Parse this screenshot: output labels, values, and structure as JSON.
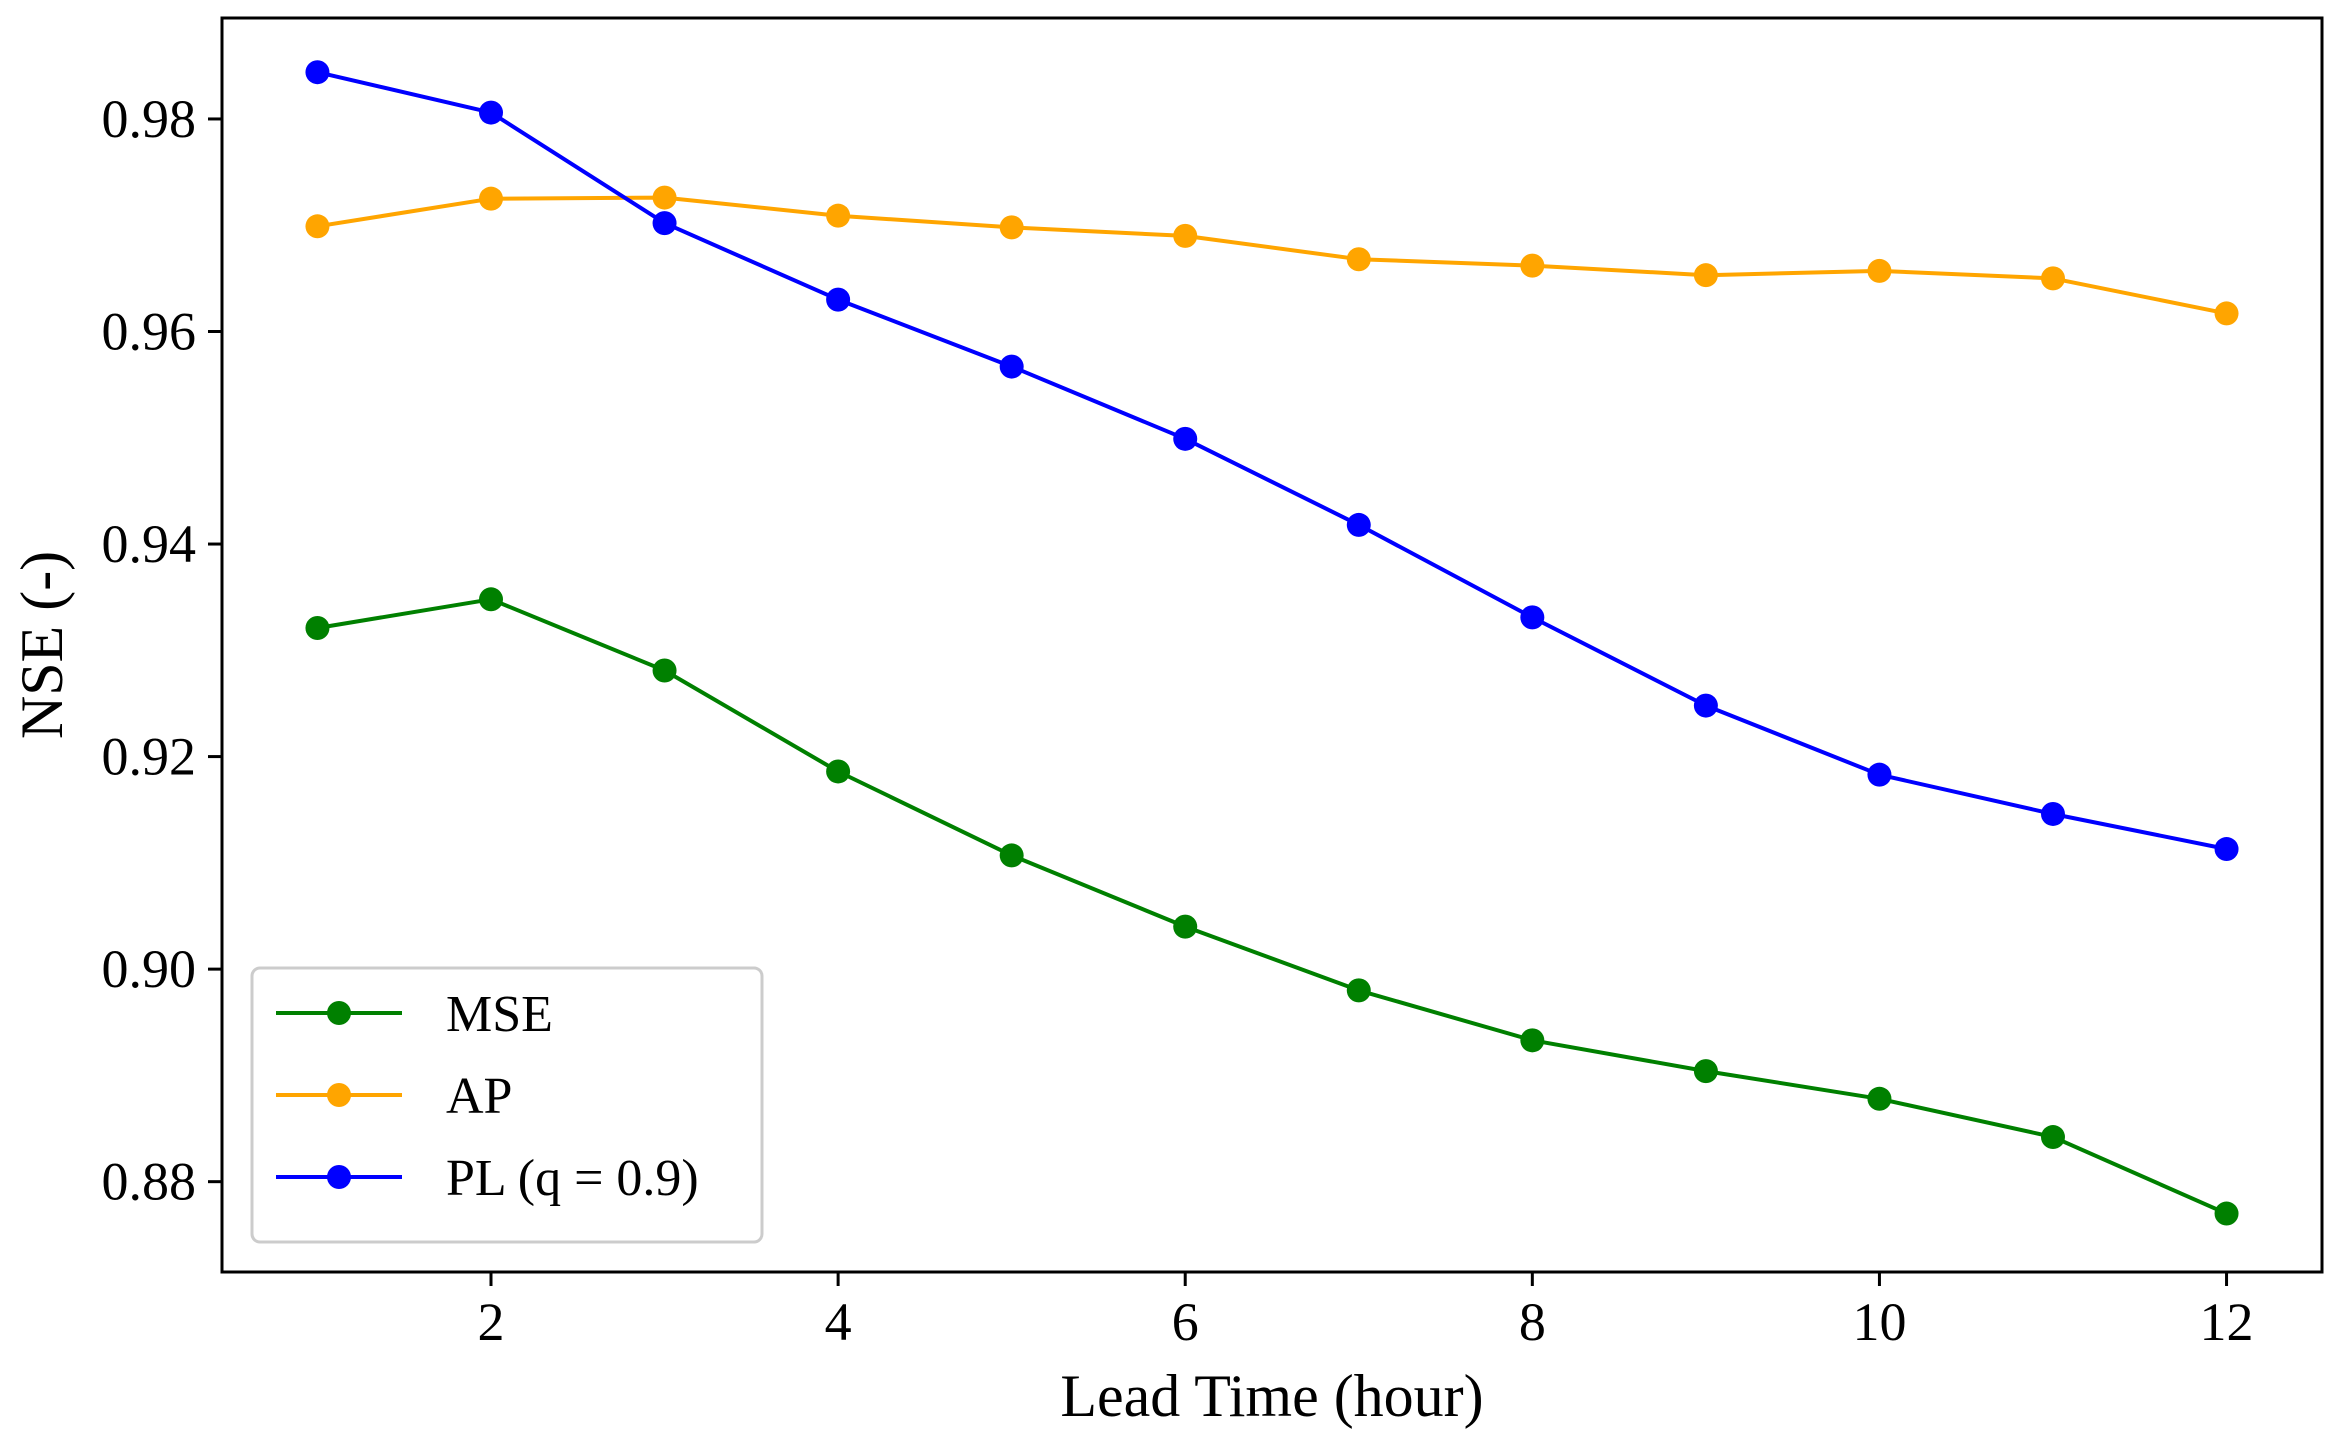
{
  "chart_data": {
    "type": "line",
    "title": "",
    "xlabel": "Lead Time (hour)",
    "ylabel": "NSE (-)",
    "x": [
      1,
      2,
      3,
      4,
      5,
      6,
      7,
      8,
      9,
      10,
      11,
      12
    ],
    "xlim": [
      0.45,
      12.55
    ],
    "ylim": [
      0.8715,
      0.9895
    ],
    "xticks": [
      2,
      4,
      6,
      8,
      10,
      12
    ],
    "xtick_labels": [
      "2",
      "4",
      "6",
      "8",
      "10",
      "12"
    ],
    "yticks": [
      0.88,
      0.9,
      0.92,
      0.94,
      0.96,
      0.98
    ],
    "ytick_labels": [
      "0.88",
      "0.90",
      "0.92",
      "0.94",
      "0.96",
      "0.98"
    ],
    "grid": false,
    "legend_position": "lower-left",
    "series": [
      {
        "name": "MSE",
        "color": "#008000",
        "values": [
          0.9321,
          0.9348,
          0.9281,
          0.9186,
          0.9107,
          0.904,
          0.898,
          0.8933,
          0.8904,
          0.8878,
          0.8842,
          0.877
        ]
      },
      {
        "name": "AP",
        "color": "#FFA500",
        "values": [
          0.9699,
          0.9725,
          0.9726,
          0.9709,
          0.9698,
          0.969,
          0.9668,
          0.9662,
          0.9653,
          0.9657,
          0.965,
          0.9617
        ]
      },
      {
        "name": "PL (q = 0.9)",
        "color": "#0000FF",
        "values": [
          0.9844,
          0.9806,
          0.9702,
          0.963,
          0.9567,
          0.9499,
          0.9418,
          0.9331,
          0.9248,
          0.9183,
          0.9146,
          0.9113
        ]
      }
    ]
  }
}
